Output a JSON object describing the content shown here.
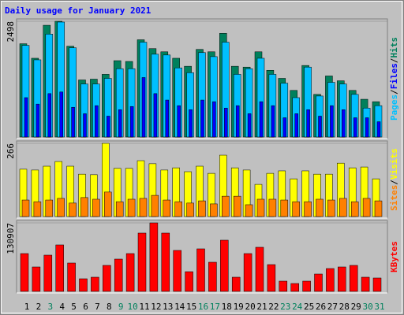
{
  "chart_data": [
    {
      "type": "bar",
      "title": "Daily usage for January 2021",
      "series": [
        {
          "name": "Hits",
          "color": "#00805c",
          "values": [
            2013,
            1700,
            2412,
            2498,
            1960,
            1232,
            1249,
            1353,
            1648,
            1631,
            2099,
            1908,
            1839,
            1700,
            1527,
            1891,
            1839,
            2238,
            1527,
            1509,
            1839,
            1440,
            1266,
            1006,
            1544,
            920,
            1318,
            1214,
            1006,
            815,
            763
          ]
        },
        {
          "name": "Pages",
          "color": "#00c0ff",
          "values": [
            1978,
            1666,
            2221,
            2481,
            1926,
            1145,
            1145,
            1266,
            1475,
            1475,
            2047,
            1787,
            1770,
            1492,
            1388,
            1822,
            1735,
            2047,
            1353,
            1475,
            1700,
            1353,
            1162,
            850,
            1509,
            885,
            1180,
            1145,
            920,
            625,
            677
          ]
        },
        {
          "name": "Files",
          "color": "#0000ff",
          "values": [
            850,
            711,
            937,
            972,
            642,
            503,
            677,
            451,
            590,
            659,
            1284,
            937,
            798,
            677,
            590,
            798,
            763,
            625,
            677,
            503,
            763,
            677,
            416,
            503,
            590,
            451,
            677,
            590,
            416,
            416,
            330
          ]
        }
      ],
      "legend_order": [
        "Pages",
        "Files",
        "Hits"
      ],
      "legend_separator": "/",
      "ylim": [
        0,
        2498
      ],
      "yticks": [
        2498
      ]
    },
    {
      "type": "bar",
      "series": [
        {
          "name": "Visits",
          "color": "#ffff00",
          "values": [
            172,
            169,
            183,
            200,
            183,
            154,
            152,
            266,
            175,
            175,
            203,
            192,
            169,
            177,
            163,
            183,
            157,
            223,
            177,
            169,
            117,
            157,
            166,
            137,
            166,
            154,
            154,
            194,
            177,
            180,
            137
          ]
        },
        {
          "name": "Sites",
          "color": "#ff8000",
          "values": [
            60,
            54,
            60,
            66,
            49,
            69,
            63,
            89,
            54,
            63,
            66,
            77,
            60,
            54,
            49,
            57,
            46,
            74,
            74,
            43,
            63,
            63,
            60,
            54,
            54,
            63,
            60,
            66,
            54,
            66,
            57
          ]
        }
      ],
      "legend_order": [
        "Sites",
        "Visits"
      ],
      "legend_separator": "/",
      "ylim": [
        0,
        266
      ],
      "yticks": [
        266
      ]
    },
    {
      "type": "bar",
      "series": [
        {
          "name": "KBytes",
          "color": "#ff0000",
          "values": [
            72240,
            46655,
            69230,
            88795,
            54180,
            24080,
            27090,
            49665,
            61705,
            72240,
            111370,
            130907,
            111370,
            78260,
            37625,
            81270,
            55685,
            97825,
            27090,
            72240,
            84280,
            51170,
            19565,
            15050,
            19565,
            33110,
            43645,
            46655,
            49665,
            27090,
            25585
          ]
        }
      ],
      "legend_order": [
        "KBytes"
      ],
      "legend_separator": "/",
      "ylim": [
        0,
        130907
      ],
      "yticks": [
        130907
      ],
      "categories": [
        "1",
        "2",
        "3",
        "4",
        "5",
        "6",
        "7",
        "8",
        "9",
        "10",
        "11",
        "12",
        "13",
        "14",
        "15",
        "16",
        "17",
        "18",
        "19",
        "20",
        "21",
        "22",
        "23",
        "24",
        "25",
        "26",
        "27",
        "28",
        "29",
        "30",
        "31"
      ],
      "category_colors": [
        "#000000",
        "#000000",
        "#00805c",
        "#000000",
        "#000000",
        "#000000",
        "#000000",
        "#000000",
        "#00805c",
        "#00805c",
        "#000000",
        "#000000",
        "#000000",
        "#000000",
        "#000000",
        "#00805c",
        "#00805c",
        "#000000",
        "#000000",
        "#000000",
        "#000000",
        "#000000",
        "#00805c",
        "#00805c",
        "#000000",
        "#000000",
        "#000000",
        "#000000",
        "#000000",
        "#00805c",
        "#00805c"
      ]
    }
  ]
}
